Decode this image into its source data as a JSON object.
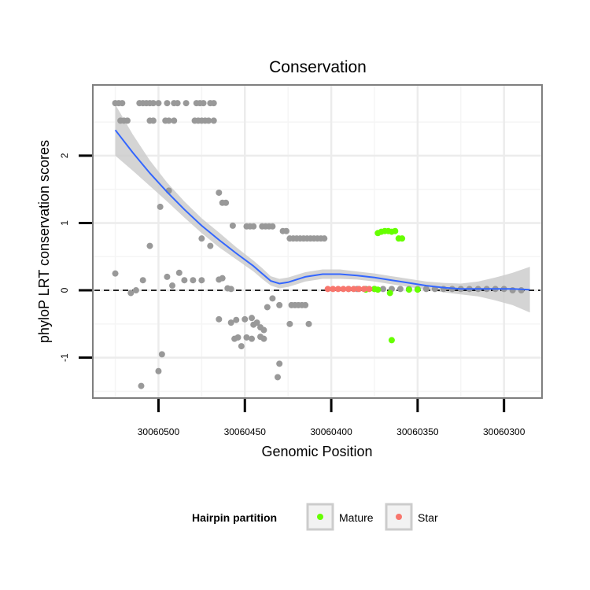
{
  "chart_data": {
    "type": "scatter",
    "title": "Conservation",
    "xlabel": "Genomic Position",
    "ylabel": "phyloP LRT conservation scores",
    "x_reversed": true,
    "xlim": [
      30060538,
      30060278
    ],
    "ylim": [
      -1.6,
      3.05
    ],
    "x_ticks": [
      {
        "value": 30060500,
        "label": "30060500"
      },
      {
        "value": 30060450,
        "label": "30060450"
      },
      {
        "value": 30060400,
        "label": "30060400"
      },
      {
        "value": 30060350,
        "label": "30060350"
      },
      {
        "value": 30060300,
        "label": "30060300"
      }
    ],
    "y_ticks": [
      {
        "value": -1,
        "label": "-1"
      },
      {
        "value": 0,
        "label": "0"
      },
      {
        "value": 1,
        "label": "1"
      },
      {
        "value": 2,
        "label": "2"
      }
    ],
    "reference_line": {
      "y": 0,
      "style": "dashed"
    },
    "legend": {
      "title": "Hairpin partition",
      "entries": [
        {
          "label": "Mature",
          "color": "#66ff00"
        },
        {
          "label": "Star",
          "color": "#f8766d"
        }
      ]
    },
    "colors": {
      "unassigned": "#999999",
      "mature": "#66ff00",
      "star": "#f8766d",
      "smooth": "#3366ff",
      "ribbon": "#cccccc"
    },
    "series": [
      {
        "name": "unassigned",
        "points": [
          [
            30060525,
            2.78
          ],
          [
            30060523,
            2.78
          ],
          [
            30060521,
            2.78
          ],
          [
            30060511,
            2.78
          ],
          [
            30060509,
            2.78
          ],
          [
            30060507,
            2.78
          ],
          [
            30060505,
            2.78
          ],
          [
            30060503,
            2.78
          ],
          [
            30060500,
            2.78
          ],
          [
            30060495,
            2.78
          ],
          [
            30060491,
            2.78
          ],
          [
            30060489,
            2.78
          ],
          [
            30060484,
            2.78
          ],
          [
            30060478,
            2.78
          ],
          [
            30060476,
            2.78
          ],
          [
            30060474,
            2.78
          ],
          [
            30060470,
            2.78
          ],
          [
            30060468,
            2.78
          ],
          [
            30060522,
            2.52
          ],
          [
            30060520,
            2.52
          ],
          [
            30060518,
            2.52
          ],
          [
            30060505,
            2.52
          ],
          [
            30060503,
            2.52
          ],
          [
            30060496,
            2.52
          ],
          [
            30060494,
            2.52
          ],
          [
            30060491,
            2.52
          ],
          [
            30060479,
            2.52
          ],
          [
            30060477,
            2.52
          ],
          [
            30060475,
            2.52
          ],
          [
            30060473,
            2.52
          ],
          [
            30060471,
            2.52
          ],
          [
            30060468,
            2.52
          ],
          [
            30060465,
            1.45
          ],
          [
            30060463,
            1.3
          ],
          [
            30060461,
            1.3
          ],
          [
            30060494,
            1.48
          ],
          [
            30060499,
            1.24
          ],
          [
            30060475,
            0.77
          ],
          [
            30060457,
            0.96
          ],
          [
            30060449,
            0.95
          ],
          [
            30060447,
            0.95
          ],
          [
            30060445,
            0.95
          ],
          [
            30060440,
            0.95
          ],
          [
            30060438,
            0.95
          ],
          [
            30060436,
            0.95
          ],
          [
            30060434,
            0.95
          ],
          [
            30060428,
            0.88
          ],
          [
            30060426,
            0.88
          ],
          [
            30060424,
            0.77
          ],
          [
            30060422,
            0.77
          ],
          [
            30060420,
            0.77
          ],
          [
            30060418,
            0.77
          ],
          [
            30060416,
            0.77
          ],
          [
            30060414,
            0.77
          ],
          [
            30060412,
            0.77
          ],
          [
            30060410,
            0.77
          ],
          [
            30060408,
            0.77
          ],
          [
            30060406,
            0.77
          ],
          [
            30060404,
            0.77
          ],
          [
            30060470,
            0.66
          ],
          [
            30060505,
            0.66
          ],
          [
            30060525,
            0.25
          ],
          [
            30060509,
            0.15
          ],
          [
            30060495,
            0.2
          ],
          [
            30060492,
            0.07
          ],
          [
            30060488,
            0.26
          ],
          [
            30060485,
            0.15
          ],
          [
            30060480,
            0.15
          ],
          [
            30060475,
            0.15
          ],
          [
            30060465,
            0.16
          ],
          [
            30060463,
            0.18
          ],
          [
            30060460,
            0.03
          ],
          [
            30060458,
            0.02
          ],
          [
            30060516,
            -0.04
          ],
          [
            30060513,
            0.0
          ],
          [
            30060437,
            -0.25
          ],
          [
            30060434,
            -0.12
          ],
          [
            30060430,
            -0.22
          ],
          [
            30060423,
            -0.22
          ],
          [
            30060421,
            -0.22
          ],
          [
            30060419,
            -0.22
          ],
          [
            30060417,
            -0.22
          ],
          [
            30060415,
            -0.22
          ],
          [
            30060465,
            -0.43
          ],
          [
            30060458,
            -0.48
          ],
          [
            30060455,
            -0.44
          ],
          [
            30060450,
            -0.43
          ],
          [
            30060446,
            -0.41
          ],
          [
            30060445,
            -0.51
          ],
          [
            30060443,
            -0.48
          ],
          [
            30060441,
            -0.55
          ],
          [
            30060439,
            -0.59
          ],
          [
            30060424,
            -0.5
          ],
          [
            30060413,
            -0.5
          ],
          [
            30060456,
            -0.72
          ],
          [
            30060454,
            -0.7
          ],
          [
            30060449,
            -0.7
          ],
          [
            30060446,
            -0.72
          ],
          [
            30060441,
            -0.69
          ],
          [
            30060439,
            -0.72
          ],
          [
            30060452,
            -0.83
          ],
          [
            30060498,
            -0.95
          ],
          [
            30060500,
            -1.2
          ],
          [
            30060510,
            -1.42
          ],
          [
            30060430,
            -1.09
          ],
          [
            30060431,
            -1.29
          ],
          [
            30060390,
            0.02
          ],
          [
            30060385,
            0.02
          ],
          [
            30060380,
            0.02
          ],
          [
            30060375,
            0.02
          ],
          [
            30060370,
            0.02
          ],
          [
            30060365,
            0.02
          ],
          [
            30060360,
            0.02
          ],
          [
            30060355,
            0.02
          ],
          [
            30060350,
            0.02
          ],
          [
            30060345,
            0.02
          ],
          [
            30060340,
            0.02
          ],
          [
            30060335,
            0.02
          ],
          [
            30060330,
            0.02
          ],
          [
            30060325,
            0.02
          ],
          [
            30060320,
            0.02
          ],
          [
            30060315,
            0.02
          ],
          [
            30060310,
            0.02
          ],
          [
            30060305,
            0.02
          ],
          [
            30060300,
            0.02
          ],
          [
            30060295,
            0.0
          ],
          [
            30060290,
            0.0
          ]
        ]
      },
      {
        "name": "Mature",
        "points": [
          [
            30060373,
            0.85
          ],
          [
            30060371,
            0.87
          ],
          [
            30060369,
            0.88
          ],
          [
            30060367,
            0.88
          ],
          [
            30060365,
            0.87
          ],
          [
            30060363,
            0.88
          ],
          [
            30060361,
            0.77
          ],
          [
            30060359,
            0.77
          ],
          [
            30060375,
            0.02
          ],
          [
            30060373,
            0.01
          ],
          [
            30060366,
            -0.04
          ],
          [
            30060365,
            -0.74
          ],
          [
            30060355,
            0.01
          ],
          [
            30060350,
            0.01
          ],
          [
            30060380,
            0.01
          ]
        ]
      },
      {
        "name": "Star",
        "points": [
          [
            30060402,
            0.02
          ],
          [
            30060399,
            0.02
          ],
          [
            30060396,
            0.02
          ],
          [
            30060393,
            0.02
          ],
          [
            30060390,
            0.02
          ],
          [
            30060387,
            0.02
          ],
          [
            30060384,
            0.02
          ],
          [
            30060381,
            0.02
          ],
          [
            30060378,
            0.02
          ]
        ]
      }
    ],
    "smooth": {
      "x": [
        30060525,
        30060515,
        30060505,
        30060495,
        30060485,
        30060475,
        30060465,
        30060455,
        30060445,
        30060440,
        30060435,
        30060430,
        30060425,
        30060415,
        30060405,
        30060395,
        30060385,
        30060375,
        30060365,
        30060355,
        30060345,
        30060335,
        30060325,
        30060315,
        30060305,
        30060295,
        30060285
      ],
      "y": [
        2.38,
        2.05,
        1.74,
        1.46,
        1.2,
        0.96,
        0.75,
        0.55,
        0.36,
        0.25,
        0.14,
        0.1,
        0.12,
        0.2,
        0.24,
        0.24,
        0.22,
        0.19,
        0.15,
        0.11,
        0.07,
        0.04,
        0.02,
        0.02,
        0.02,
        0.02,
        0.01
      ],
      "lo": [
        2.0,
        1.78,
        1.55,
        1.32,
        1.08,
        0.85,
        0.64,
        0.46,
        0.28,
        0.17,
        0.07,
        0.03,
        0.05,
        0.13,
        0.17,
        0.17,
        0.16,
        0.13,
        0.09,
        0.05,
        0.01,
        -0.03,
        -0.06,
        -0.09,
        -0.15,
        -0.22,
        -0.33
      ],
      "hi": [
        2.76,
        2.32,
        1.93,
        1.6,
        1.32,
        1.07,
        0.86,
        0.64,
        0.44,
        0.33,
        0.21,
        0.17,
        0.19,
        0.27,
        0.31,
        0.31,
        0.28,
        0.25,
        0.21,
        0.17,
        0.13,
        0.11,
        0.1,
        0.13,
        0.19,
        0.26,
        0.35
      ]
    }
  }
}
